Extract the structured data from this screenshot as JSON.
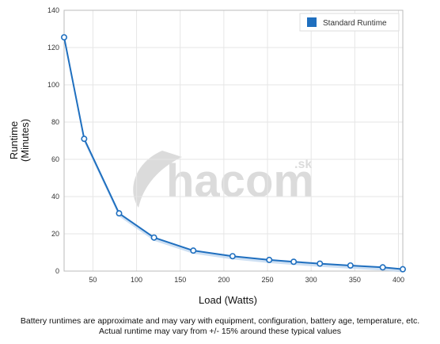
{
  "chart_data": {
    "type": "line",
    "xlabel": "Load (Watts)",
    "ylabel_lines": [
      "Runtime",
      "(Minutes)"
    ],
    "x_ticks": [
      50,
      100,
      150,
      200,
      250,
      300,
      350,
      400
    ],
    "y_ticks": [
      0,
      20,
      40,
      60,
      80,
      100,
      120,
      140
    ],
    "xlim": [
      17,
      405
    ],
    "ylim": [
      0,
      140
    ],
    "grid": true,
    "legend_position": "top-right",
    "series": [
      {
        "name": "Standard Runtime",
        "color": "#1f6fbf",
        "x": [
          17,
          40,
          80,
          120,
          165,
          210,
          252,
          280,
          310,
          345,
          382,
          405
        ],
        "y": [
          125.5,
          71,
          31,
          18,
          11,
          8,
          6,
          5,
          4,
          3,
          2,
          1
        ]
      }
    ]
  },
  "watermark": {
    "text": "hacom",
    "suffix": ".sk"
  },
  "footnote": {
    "line1": "Battery runtimes are approximate and may vary with equipment, configuration, battery age, temperature, etc.",
    "line2": "Actual runtime may vary from +/- 15% around these typical values"
  }
}
